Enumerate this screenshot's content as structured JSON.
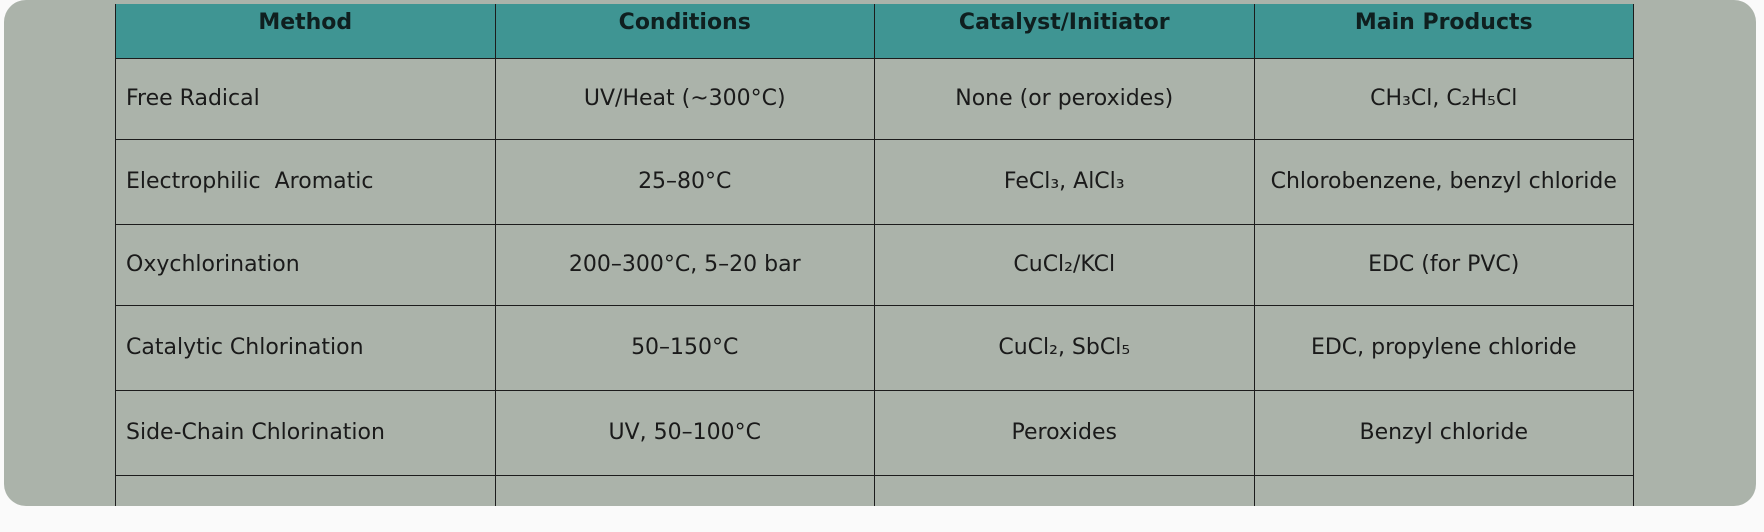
{
  "table": {
    "headers": [
      "Method",
      "Conditions",
      "Catalyst/Initiator",
      "Main Products"
    ],
    "rows": [
      {
        "method": "Free Radical",
        "conditions": "UV/Heat (~300°C)",
        "catalyst": "None (or peroxides)",
        "products": "CH₃Cl, C₂H₅Cl"
      },
      {
        "method": "Electrophilic  Aromatic",
        "conditions": "25–80°C",
        "catalyst": "FeCl₃, AlCl₃",
        "products": "Chlorobenzene, benzyl chloride"
      },
      {
        "method": "Oxychlorination",
        "conditions": "200–300°C, 5–20 bar",
        "catalyst": "CuCl₂/KCl",
        "products": "EDC (for PVC)"
      },
      {
        "method": "Catalytic Chlorination",
        "conditions": "50–150°C",
        "catalyst": "CuCl₂, SbCl₅",
        "products": "EDC, propylene chloride"
      },
      {
        "method": "Side-Chain Chlorination",
        "conditions": "UV, 50–100°C",
        "catalyst": "Peroxides",
        "products": "Benzyl chloride"
      },
      {
        "method": "",
        "conditions": "",
        "catalyst": "",
        "products": ""
      }
    ]
  }
}
